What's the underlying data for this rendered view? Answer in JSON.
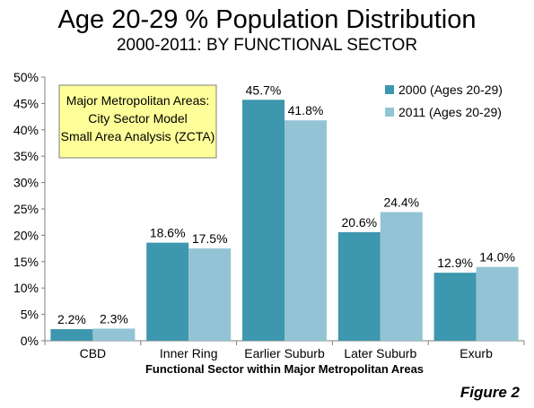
{
  "title": "Age 20-29 % Population Distribution",
  "subtitle": "2000-2011: BY FUNCTIONAL SECTOR",
  "figure_label": "Figure 2",
  "chart_data": {
    "type": "bar",
    "categories": [
      "CBD",
      "Inner Ring",
      "Earlier Suburb",
      "Later Suburb",
      "Exurb"
    ],
    "series": [
      {
        "name": "2000 (Ages 20-29)",
        "values": [
          2.2,
          18.6,
          45.7,
          20.6,
          12.9
        ],
        "color": "#3d97ae"
      },
      {
        "name": "2011 (Ages 20-29)",
        "values": [
          2.3,
          17.5,
          41.8,
          24.4,
          14.0
        ],
        "color": "#93c4d6"
      }
    ],
    "data_labels": [
      [
        "2.2%",
        "18.6%",
        "45.7%",
        "20.6%",
        "12.9%"
      ],
      [
        "2.3%",
        "17.5%",
        "41.8%",
        "24.4%",
        "14.0%"
      ]
    ],
    "xlabel": "Functional Sector within Major Metropolitan Areas",
    "ylabel": "",
    "ylim": [
      0,
      50
    ],
    "yticks": [
      0,
      5,
      10,
      15,
      20,
      25,
      30,
      35,
      40,
      45,
      50
    ],
    "ytick_labels": [
      "0%",
      "5%",
      "10%",
      "15%",
      "20%",
      "25%",
      "30%",
      "35%",
      "40%",
      "45%",
      "50%"
    ],
    "grid": false,
    "legend_position": "top-right",
    "annotation": {
      "lines": [
        "Major Metropolitan Areas:",
        "City Sector Model",
        "Small Area Analysis (ZCTA)"
      ],
      "background": "#ffff99"
    }
  }
}
